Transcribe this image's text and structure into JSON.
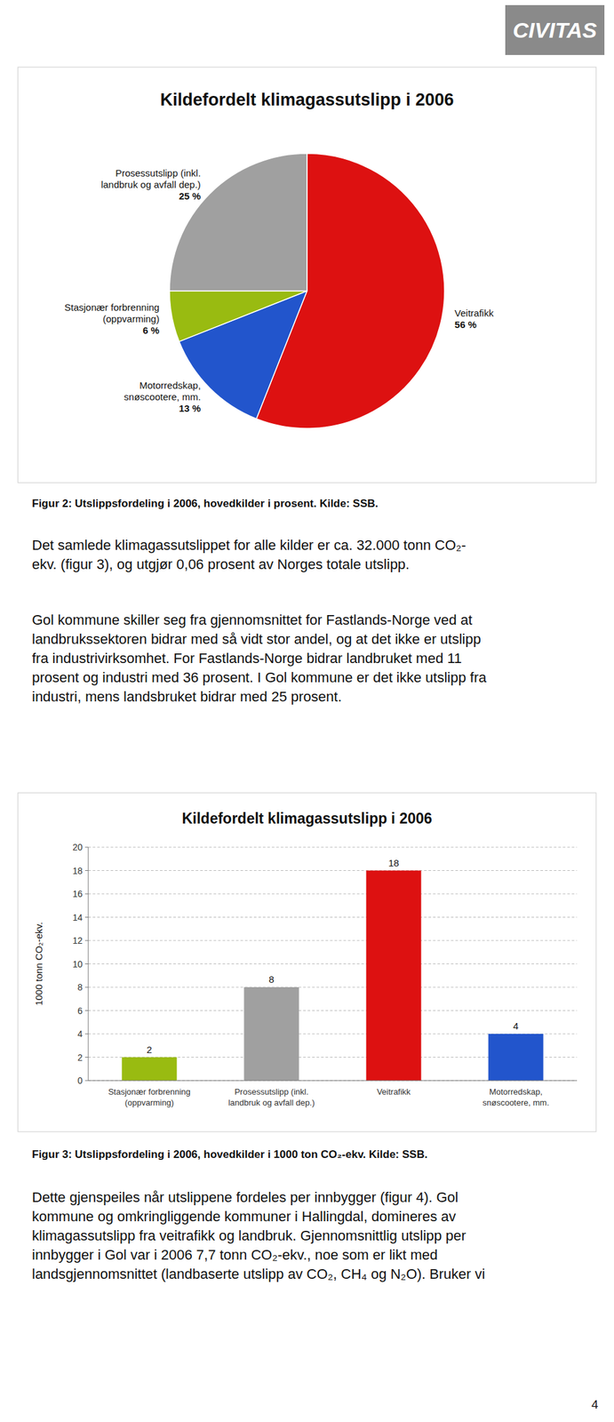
{
  "logo": "CIVITAS",
  "body_texts": [
    "Det samlede klimagassutslippet for alle kilder er ca. 32.000 tonn CO₂-\nekv. (figur 3), og utgjør 0,06 prosent av Norges totale utslipp.",
    "Gol kommune skiller seg fra gjennomsnittet for Fastlands-Norge ved at\nlandbrukssektoren bidrar med så vidt stor andel, og at det ikke er utslipp\nfra industrivirksomhet. For Fastlands-Norge bidrar landbruket med 11\nprosent og industri med 36 prosent. I Gol kommune er det ikke utslipp fra\nindustri, mens landsbruket bidrar med 25 prosent.",
    "Dette gjenspeiles når utslippene fordeles per innbygger (figur 4). Gol\nkommune og omkringliggende kommuner i Hallingdal, domineres av\nklimagassutslipp fra veitrafikk og landbruk. Gjennomsnittlig utslipp per\ninnbygger i Gol var i 2006 7,7 tonn CO₂-ekv., noe som er likt med\nlandsgjennomsnittet (landbaserte utslipp av CO₂, CH₄ og N₂O). Bruker vi"
  ],
  "page_number": "4",
  "chart_data": [
    {
      "type": "pie",
      "title": "Kildefordelt klimagassutslipp i 2006",
      "caption": "Figur 2: Utslippsfordeling i 2006, hovedkilder i prosent. Kilde: SSB.",
      "categories": [
        "Veitrafikk",
        "Motorredskap,\nsnøscootere, mm.",
        "Stasjonær forbrenning\n(oppvarming)",
        "Prosessutslipp (inkl.\nlandbruk og avfall dep.)"
      ],
      "values": [
        56,
        13,
        6,
        25
      ],
      "value_labels": [
        "56 %",
        "13 %",
        "6 %",
        "25 %"
      ],
      "colors": [
        "#dd1111",
        "#2255cc",
        "#99bb11",
        "#a0a0a0"
      ],
      "data_labels": true
    },
    {
      "type": "bar",
      "title": "Kildefordelt klimagassutslipp i 2006",
      "caption": "Figur 3: Utslippsfordeling i 2006, hovedkilder i 1000 ton CO₂-ekv. Kilde: SSB.",
      "categories": [
        "Stasjonær forbrenning\n(oppvarming)",
        "Prosessutslipp (inkl.\nlandbruk og avfall dep.)",
        "Veitrafikk",
        "Motorredskap,\nsnøscootere, mm."
      ],
      "values": [
        2,
        8,
        18,
        4
      ],
      "colors": [
        "#99bb11",
        "#a0a0a0",
        "#dd1111",
        "#2255cc"
      ],
      "ylabel": "1000 tonn CO₂-ekv.",
      "ylim": [
        0,
        20
      ],
      "yticks": [
        0,
        2,
        4,
        6,
        8,
        10,
        12,
        14,
        16,
        18,
        20
      ],
      "grid": true,
      "data_labels": true
    }
  ]
}
